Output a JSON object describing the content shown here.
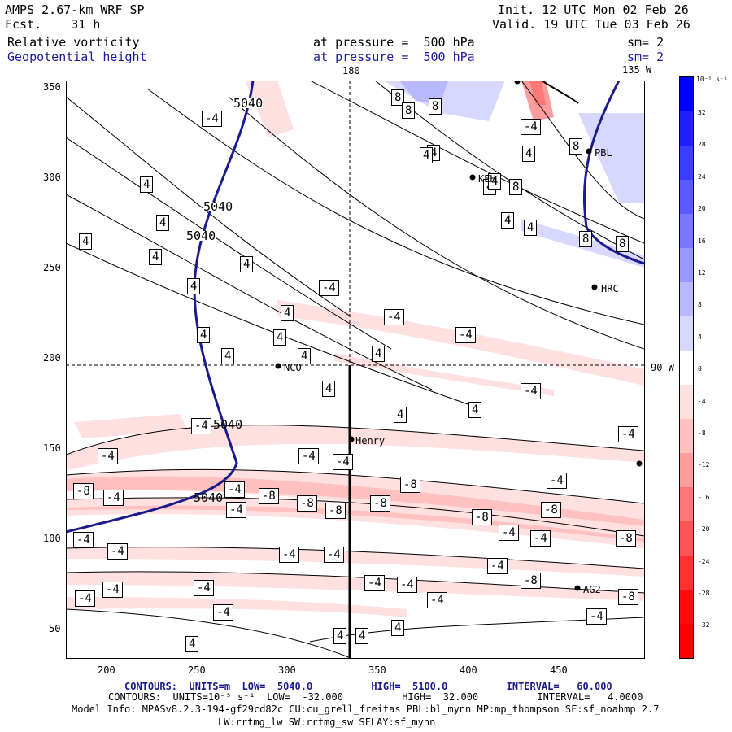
{
  "header": {
    "model": "AMPS 2.67-km WRF SP",
    "fcst": "Fcst.    31 h",
    "init": "Init. 12 UTC Mon 02 Feb 26",
    "valid": "Valid. 19 UTC Tue 03 Feb 26",
    "field1_name": "Relative vorticity",
    "field1_level": "at pressure =  500 hPa",
    "field1_sm": "sm= 2",
    "field2_name": "Geopotential height",
    "field2_level": "at pressure =  500 hPa",
    "field2_sm": "sm= 2"
  },
  "map": {
    "lon_top_180": "180",
    "lon_top_135w": "135 W",
    "lat_right_90s": "90 W",
    "x_ticks": [
      "200",
      "250",
      "300",
      "350",
      "400",
      "450"
    ],
    "y_ticks": [
      "350",
      "300",
      "250",
      "200",
      "150",
      "100",
      "50"
    ],
    "stations": [
      {
        "name": "NCO"
      },
      {
        "name": "Henry"
      },
      {
        "name": "HRC"
      },
      {
        "name": "PBL"
      },
      {
        "name": "KEH"
      },
      {
        "name": "AG2"
      }
    ],
    "height_contour_labels": [
      "5040",
      "5040",
      "5040",
      "5040",
      "5040"
    ],
    "vorticity_labels": [
      "-4",
      "4",
      "8",
      "-8"
    ]
  },
  "colorbar": {
    "units": "10⁻⁵ s⁻¹",
    "levels": [
      "32",
      "28",
      "24",
      "20",
      "16",
      "12",
      "8",
      "4",
      "0",
      "-4",
      "-8",
      "-12",
      "-16",
      "-20",
      "-24",
      "-28",
      "-32"
    ],
    "colors": [
      "#0000ff",
      "#1f1fff",
      "#3c3cff",
      "#5a5aff",
      "#7878ff",
      "#9898ff",
      "#b8b8ff",
      "#d8d8ff",
      "#ffffff",
      "#ffe0e0",
      "#ffc0c0",
      "#ff9c9c",
      "#ff7878",
      "#ff5454",
      "#ff3030",
      "#ff0c0c",
      "#ff0000"
    ]
  },
  "footer": {
    "line1": "CONTOURS:  UNITS=m  LOW=  5040.0          HIGH=  5100.0          INTERVAL=   60.000",
    "line2": "CONTOURS:  UNITS=10⁻⁵ s⁻¹  LOW=  -32.000          HIGH=  32.000          INTERVAL=   4.0000",
    "line3": "Model Info: MPASv8.2.3-194-gf29cd82c CU:cu_grell_freitas PBL:bl_mynn MP:mp_thompson SF:sf_noahmp 2.7",
    "line4": "LW:rrtmg_lw SW:rrtmg_sw SFLAY:sf_mynn"
  }
}
